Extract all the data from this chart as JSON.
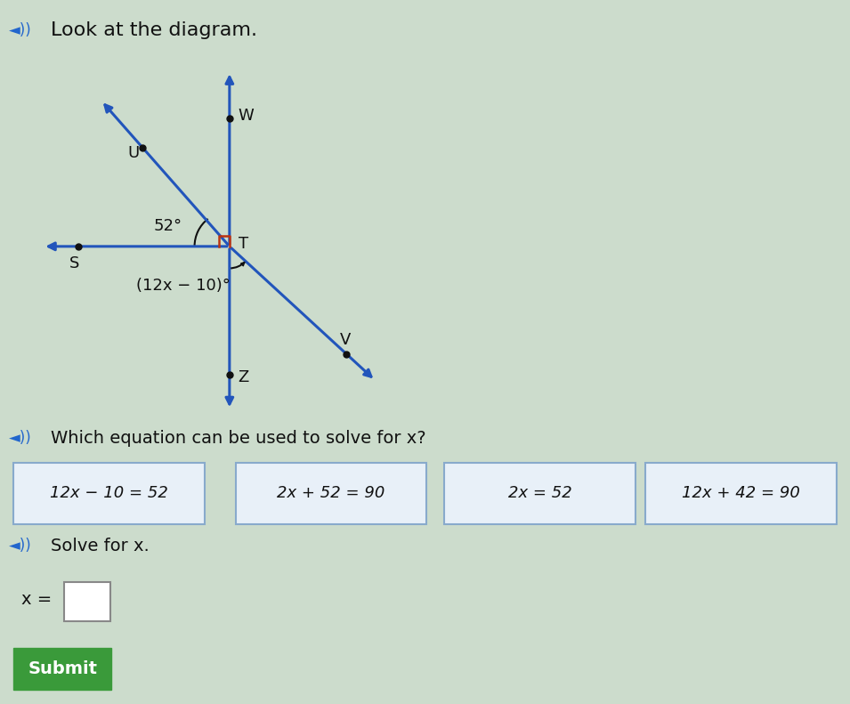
{
  "bg_color": "#ccdccc",
  "title_text": "Look at the diagram.",
  "diagram": {
    "line_color": "#2255bb",
    "line_width": 2.2,
    "point_color": "#111111",
    "point_size": 5,
    "right_angle_color": "#bb3311",
    "angle_52_label": "52°",
    "angle_expr_label": "(12x − 10)°"
  },
  "question1_text": "Which equation can be used to solve for x?",
  "buttons": [
    "12x − 10 = 52",
    "2x + 52 = 90",
    "2x = 52",
    "12x + 42 = 90"
  ],
  "question2_text": "Solve for x.",
  "solve_label": "x =",
  "submit_text": "Submit",
  "submit_color": "#3a9a3a",
  "text_color": "#111111",
  "speaker_color": "#2266cc",
  "btn_border_color": "#88aacc",
  "btn_face_color": "#e8f0f8"
}
